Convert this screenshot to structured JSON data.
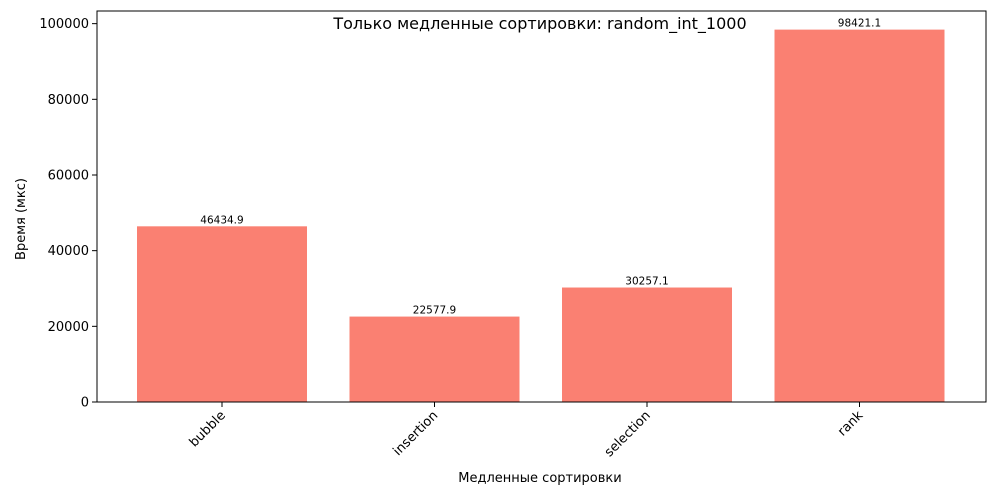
{
  "chart_data": {
    "type": "bar",
    "title": "Только медленные сортировки: random_int_1000",
    "xlabel": "Медленные сортировки",
    "ylabel": "Время (мкс)",
    "categories": [
      "bubble",
      "insertion",
      "selection",
      "rank"
    ],
    "values": [
      46434.9,
      22577.9,
      30257.1,
      98421.1
    ],
    "data_labels": [
      "46434.9",
      "22577.9",
      "30257.1",
      "98421.1"
    ],
    "ylim": [
      0,
      103342
    ],
    "yticks": [
      0,
      20000,
      40000,
      60000,
      80000,
      100000
    ],
    "ytick_labels": [
      "0",
      "20000",
      "40000",
      "60000",
      "80000",
      "100000"
    ],
    "bar_color": "#fa8072",
    "grid": false,
    "legend": "none"
  }
}
